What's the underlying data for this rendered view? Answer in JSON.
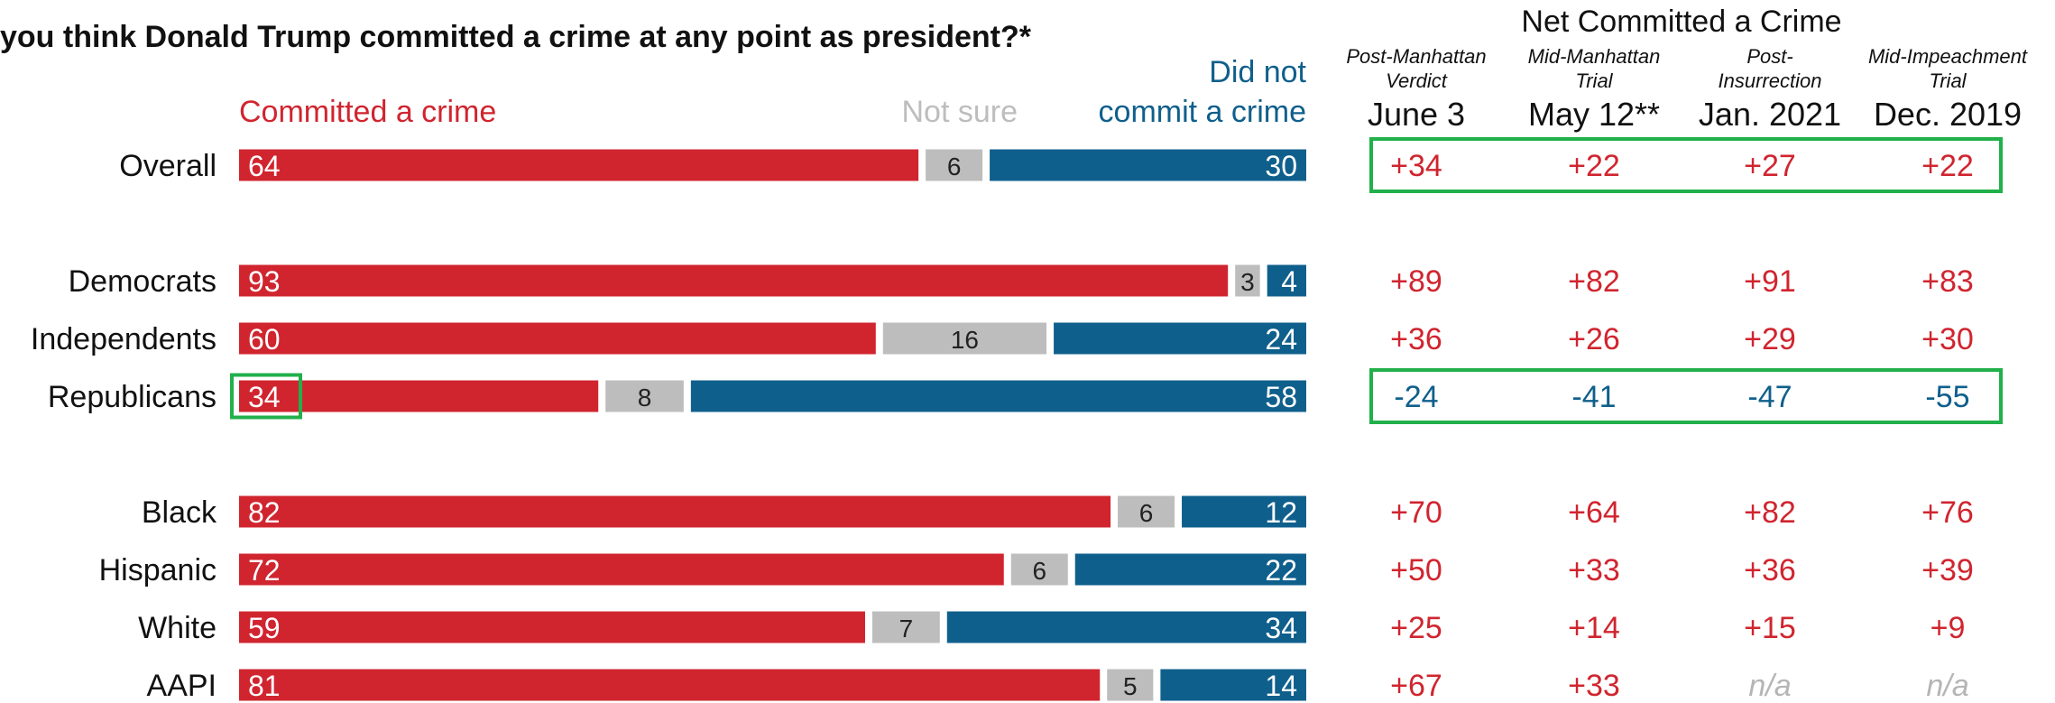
{
  "chart_data": {
    "type": "bar",
    "title": "you think Donald Trump committed a crime at any point as president?*",
    "legend": {
      "committed": "Committed a crime",
      "not_sure": "Not sure",
      "not_committed_line1": "Did not",
      "not_committed_line2": "commit a crime"
    },
    "categories": [
      "Overall",
      "Democrats",
      "Independents",
      "Republicans",
      "Black",
      "Hispanic",
      "White",
      "AAPI"
    ],
    "series": [
      {
        "name": "Committed a crime",
        "values": [
          64,
          93,
          60,
          34,
          82,
          72,
          59,
          81
        ]
      },
      {
        "name": "Not sure",
        "values": [
          6,
          3,
          16,
          8,
          6,
          6,
          7,
          5
        ]
      },
      {
        "name": "Did not commit a crime",
        "values": [
          30,
          4,
          24,
          58,
          12,
          22,
          34,
          14
        ]
      }
    ],
    "xlim": [
      0,
      100
    ],
    "colors": {
      "committed": "#d0252f",
      "not_sure": "#bdbdbd",
      "not_committed": "#0f5f8c",
      "highlight": "#22b04b",
      "na": "#b5b5b5",
      "text": "#111111"
    },
    "net": {
      "title": "Net Committed a Crime",
      "columns": [
        {
          "sub1": "Post-Manhattan",
          "sub2": "Verdict",
          "date": "June 3"
        },
        {
          "sub1": "Mid-Manhattan",
          "sub2": "Trial",
          "date": "May 12**"
        },
        {
          "sub1": "Post-",
          "sub2": "Insurrection",
          "date": "Jan. 2021"
        },
        {
          "sub1": "Mid-Impeachment",
          "sub2": "Trial",
          "date": "Dec. 2019"
        }
      ],
      "values": [
        [
          "+34",
          "+22",
          "+27",
          "+22"
        ],
        [
          "+89",
          "+82",
          "+91",
          "+83"
        ],
        [
          "+36",
          "+26",
          "+29",
          "+30"
        ],
        [
          "-24",
          "-41",
          "-47",
          "-55"
        ],
        [
          "+70",
          "+64",
          "+82",
          "+76"
        ],
        [
          "+50",
          "+33",
          "+36",
          "+39"
        ],
        [
          "+25",
          "+14",
          "+15",
          "+9"
        ],
        [
          "+67",
          "+33",
          "n/a",
          "n/a"
        ]
      ]
    },
    "highlights": {
      "net_rows": [
        "Overall",
        "Republicans"
      ],
      "bar_label": {
        "category": "Republicans",
        "series": "Committed a crime"
      }
    }
  }
}
